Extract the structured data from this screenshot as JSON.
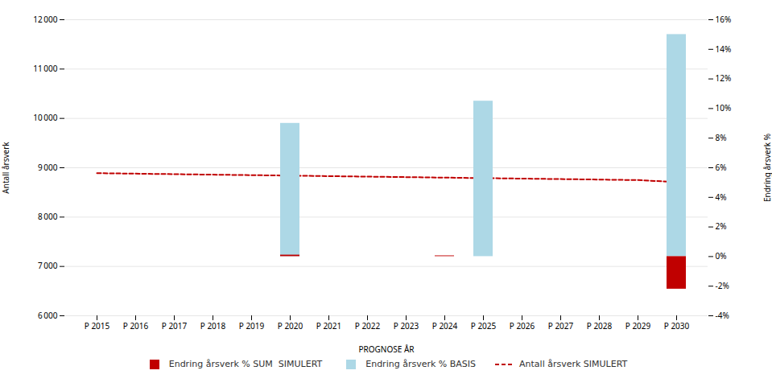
{
  "chart_data": {
    "type": "bar",
    "xlabel": "PROGNOSE ÅR",
    "ylabel": "Antall årsverk",
    "y2label": "Endring årsverk %",
    "categories": [
      "P 2015",
      "P 2016",
      "P 2017",
      "P 2018",
      "P 2019",
      "P 2020",
      "P 2021",
      "P 2022",
      "P 2023",
      "P 2024",
      "P 2025",
      "P 2026",
      "P 2027",
      "P 2028",
      "P 2029",
      "P 2030"
    ],
    "series": [
      {
        "name": "Endring årsverk % SUM  SIMULERT",
        "type": "bar",
        "axis": "y2",
        "color": "#c00000",
        "values": [
          0,
          0,
          0,
          0,
          0,
          0.1,
          0,
          0,
          0,
          0.05,
          0,
          0,
          0,
          0,
          0,
          -2.2
        ]
      },
      {
        "name": "Endring årsverk % BASIS",
        "type": "bar",
        "axis": "y2",
        "color": "#add8e6",
        "values": [
          0,
          0,
          0,
          0,
          0,
          9.0,
          0,
          0,
          0,
          0,
          10.5,
          0,
          0,
          0,
          0,
          15.0
        ]
      },
      {
        "name": "Antall årsverk SIMULERT",
        "type": "line",
        "color": "#c00000",
        "line_style": "dashed",
        "values": [
          8890,
          8880,
          8870,
          8860,
          8850,
          8840,
          8830,
          8820,
          8810,
          8800,
          8790,
          8780,
          8770,
          8760,
          8750,
          8710
        ]
      }
    ],
    "ylim": [
      6000,
      12000
    ],
    "yticks": [
      {
        "value": 6000,
        "label": "6 000"
      },
      {
        "value": 7000,
        "label": "7 000"
      },
      {
        "value": 8000,
        "label": "8 000"
      },
      {
        "value": 9000,
        "label": "9 000"
      },
      {
        "value": 10000,
        "label": "10 000"
      },
      {
        "value": 11000,
        "label": "11 000"
      },
      {
        "value": 12000,
        "label": "12 000"
      }
    ],
    "y2lim": [
      -4,
      16
    ],
    "y2ticks": [
      {
        "value": -4,
        "label": "-4%"
      },
      {
        "value": -2,
        "label": "-2%"
      },
      {
        "value": 0,
        "label": "0%"
      },
      {
        "value": 2,
        "label": "2%"
      },
      {
        "value": 4,
        "label": "4%"
      },
      {
        "value": 6,
        "label": "6%"
      },
      {
        "value": 8,
        "label": "8%"
      },
      {
        "value": 10,
        "label": "10%"
      },
      {
        "value": 12,
        "label": "12%"
      },
      {
        "value": 14,
        "label": "14%"
      },
      {
        "value": 16,
        "label": "16%"
      }
    ],
    "grid": true,
    "legend": "bottom"
  }
}
